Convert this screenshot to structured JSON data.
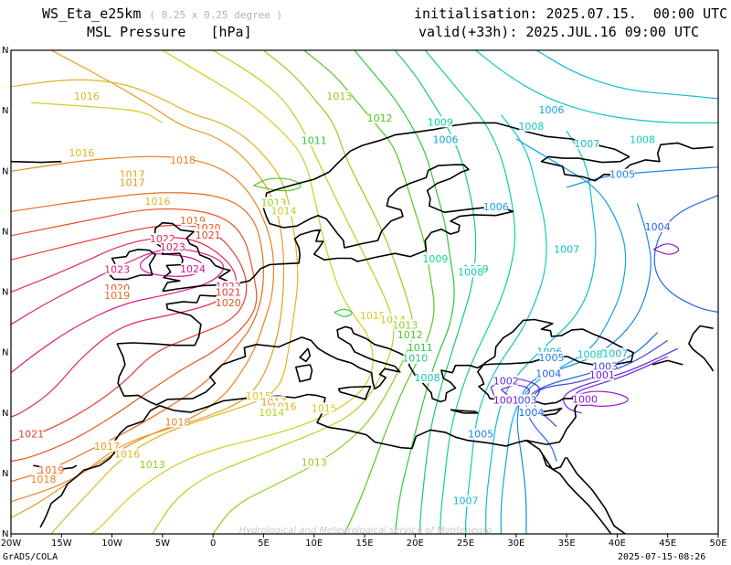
{
  "header": {
    "model": "WS_Eta_e25km",
    "resolution": "( 0.25 x 0.25 degree )",
    "field": "MSL Pressure",
    "unit": "[hPa]",
    "initialisation": "initialisation: 2025.07.15.  00:00 UTC",
    "valid": "valid(+33h): 2025.JUL.16 09:00 UTC"
  },
  "footer": {
    "left": "GrADS/COLA",
    "right": "2025-07-15-08:26"
  },
  "watermark": "Hydrological and Meteorological service of Montenegro",
  "axes": {
    "x_ticks": [
      "20W",
      "15W",
      "10W",
      "5W",
      "0",
      "5E",
      "10E",
      "15E",
      "20E",
      "25E",
      "30E",
      "35E",
      "40E",
      "45E",
      "50E"
    ],
    "y_ticks": [
      "N",
      "N",
      "N",
      "N",
      "N",
      "N",
      "N",
      "N",
      "N",
      "N"
    ]
  },
  "colors": {
    "c1000": "#9a16c8",
    "c1001": "#7a1ad6",
    "c1002": "#5a2ae0",
    "c1003": "#3c46e6",
    "c1004": "#2464e8",
    "c1005": "#1a86e6",
    "c1006": "#14a4de",
    "c1007": "#10bcd0",
    "c1008": "#10cab8",
    "c1009": "#12d09a",
    "c1010": "#1acc72",
    "c1011": "#30c83a",
    "c1012": "#52c81e",
    "c1013": "#8cd01c",
    "c1014": "#b8d21e",
    "c1015": "#d4cc22",
    "c1016": "#e0b420",
    "c1017": "#e69a20",
    "c1018": "#e8821e",
    "c1019": "#ea6a1e",
    "c1020": "#ec5224",
    "c1021": "#ea3c34",
    "c1022": "#e62a50",
    "c1023": "#de1a78",
    "c1024": "#d2129a"
  },
  "contour_labels": [
    {
      "text": "1016",
      "c": "c1016",
      "lon": -12.5,
      "lat": 74.2
    },
    {
      "text": "1016",
      "c": "c1016",
      "lon": -13.0,
      "lat": 67.2
    },
    {
      "text": "1018",
      "c": "c1018",
      "lon": -3.0,
      "lat": 66.3
    },
    {
      "text": "1017",
      "c": "c1017",
      "lon": -8.0,
      "lat": 64.5
    },
    {
      "text": "1017",
      "c": "c1017",
      "lon": -8.0,
      "lat": 63.5
    },
    {
      "text": "1016",
      "c": "c1016",
      "lon": -5.5,
      "lat": 61.2
    },
    {
      "text": "1019",
      "c": "c1019",
      "lon": -2.0,
      "lat": 58.8
    },
    {
      "text": "1020",
      "c": "c1020",
      "lon": -0.5,
      "lat": 57.9
    },
    {
      "text": "1021",
      "c": "c1021",
      "lon": -0.5,
      "lat": 57.0
    },
    {
      "text": "1022",
      "c": "c1022",
      "lon": -5.0,
      "lat": 56.5
    },
    {
      "text": "1023",
      "c": "c1023",
      "lon": -4.0,
      "lat": 55.5
    },
    {
      "text": "1023",
      "c": "c1023",
      "lon": -9.5,
      "lat": 52.7
    },
    {
      "text": "1024",
      "c": "c1024",
      "lon": -2.0,
      "lat": 52.8
    },
    {
      "text": "1022",
      "c": "c1022",
      "lon": 1.5,
      "lat": 50.6
    },
    {
      "text": "1021",
      "c": "c1021",
      "lon": 1.5,
      "lat": 49.9
    },
    {
      "text": "1020",
      "c": "c1020",
      "lon": -9.5,
      "lat": 50.4
    },
    {
      "text": "1019",
      "c": "c1019",
      "lon": -9.5,
      "lat": 49.5
    },
    {
      "text": "1020",
      "c": "c1020",
      "lon": 1.5,
      "lat": 48.6
    },
    {
      "text": "1013",
      "c": "c1013",
      "lon": 12.5,
      "lat": 74.2
    },
    {
      "text": "1012",
      "c": "c1012",
      "lon": 16.5,
      "lat": 71.5
    },
    {
      "text": "1011",
      "c": "c1011",
      "lon": 10.0,
      "lat": 68.7
    },
    {
      "text": "1013",
      "c": "c1013",
      "lon": 6.0,
      "lat": 61.0
    },
    {
      "text": "1014",
      "c": "c1014",
      "lon": 7.0,
      "lat": 60.0
    },
    {
      "text": "1009",
      "c": "c1009",
      "lon": 22.5,
      "lat": 71.0
    },
    {
      "text": "1006",
      "c": "c1006",
      "lon": 23.0,
      "lat": 68.8
    },
    {
      "text": "1008",
      "c": "c1008",
      "lon": 31.5,
      "lat": 70.5
    },
    {
      "text": "1008",
      "c": "c1008",
      "lon": 42.5,
      "lat": 68.8
    },
    {
      "text": "1007",
      "c": "c1007",
      "lon": 37.0,
      "lat": 68.3
    },
    {
      "text": "1006",
      "c": "c1006",
      "lon": 33.5,
      "lat": 72.5
    },
    {
      "text": "1005",
      "c": "c1005",
      "lon": 40.5,
      "lat": 64.5
    },
    {
      "text": "1006",
      "c": "c1006",
      "lon": 28.0,
      "lat": 60.5
    },
    {
      "text": "1004",
      "c": "c1004",
      "lon": 44.0,
      "lat": 58.0
    },
    {
      "text": "1007",
      "c": "c1007",
      "lon": 35.0,
      "lat": 55.2
    },
    {
      "text": "1009",
      "c": "c1009",
      "lon": 22.0,
      "lat": 54.0
    },
    {
      "text": "1009",
      "c": "c1009",
      "lon": 26.0,
      "lat": 52.8
    },
    {
      "text": "1008",
      "c": "c1008",
      "lon": 25.5,
      "lat": 52.4
    },
    {
      "text": "1015",
      "c": "c1015",
      "lon": 15.8,
      "lat": 47.0
    },
    {
      "text": "1014",
      "c": "c1014",
      "lon": 17.8,
      "lat": 46.5
    },
    {
      "text": "1013",
      "c": "c1013",
      "lon": 19.0,
      "lat": 45.8
    },
    {
      "text": "1012",
      "c": "c1012",
      "lon": 19.5,
      "lat": 44.6
    },
    {
      "text": "1011",
      "c": "c1011",
      "lon": 20.5,
      "lat": 43.0
    },
    {
      "text": "1010",
      "c": "c1010",
      "lon": 20.0,
      "lat": 41.7
    },
    {
      "text": "1008",
      "c": "c1008",
      "lon": 21.2,
      "lat": 39.3
    },
    {
      "text": "1006",
      "c": "c1006",
      "lon": 33.3,
      "lat": 42.5
    },
    {
      "text": "1005",
      "c": "c1005",
      "lon": 33.5,
      "lat": 41.8
    },
    {
      "text": "1008",
      "c": "c1008",
      "lon": 37.3,
      "lat": 42.2
    },
    {
      "text": "1007",
      "c": "c1007",
      "lon": 39.8,
      "lat": 42.3
    },
    {
      "text": "1003",
      "c": "c1003",
      "lon": 38.8,
      "lat": 40.7
    },
    {
      "text": "1004",
      "c": "c1004",
      "lon": 33.2,
      "lat": 39.8
    },
    {
      "text": "1001",
      "c": "c1001",
      "lon": 38.5,
      "lat": 39.6
    },
    {
      "text": "1002",
      "c": "c1002",
      "lon": 29.0,
      "lat": 38.9
    },
    {
      "text": "1000",
      "c": "c1000",
      "lon": 36.8,
      "lat": 36.6
    },
    {
      "text": "1003",
      "c": "c1003",
      "lon": 30.8,
      "lat": 36.5
    },
    {
      "text": "1001",
      "c": "c1001",
      "lon": 29.0,
      "lat": 36.5
    },
    {
      "text": "1004",
      "c": "c1004",
      "lon": 31.5,
      "lat": 35.0
    },
    {
      "text": "1005",
      "c": "c1005",
      "lon": 26.5,
      "lat": 32.3
    },
    {
      "text": "1007",
      "c": "c1007",
      "lon": 25.0,
      "lat": 24.0
    },
    {
      "text": "1013",
      "c": "c1013",
      "lon": 10.0,
      "lat": 28.8
    },
    {
      "text": "1018",
      "c": "c1018",
      "lon": -3.5,
      "lat": 33.8
    },
    {
      "text": "1017",
      "c": "c1017",
      "lon": -10.5,
      "lat": 30.8
    },
    {
      "text": "1016",
      "c": "c1016",
      "lon": -8.5,
      "lat": 29.8
    },
    {
      "text": "1013",
      "c": "c1013",
      "lon": -6.0,
      "lat": 28.5
    },
    {
      "text": "1015",
      "c": "c1015",
      "lon": 4.5,
      "lat": 37.0
    },
    {
      "text": "1017",
      "c": "c1017",
      "lon": 6.0,
      "lat": 36.3
    },
    {
      "text": "1016",
      "c": "c1016",
      "lon": 7.0,
      "lat": 35.7
    },
    {
      "text": "1014",
      "c": "c1014",
      "lon": 5.8,
      "lat": 35.0
    },
    {
      "text": "1015",
      "c": "c1015",
      "lon": 11.0,
      "lat": 35.5
    },
    {
      "text": "1021",
      "c": "c1021",
      "lon": -18.0,
      "lat": 32.3
    },
    {
      "text": "1019",
      "c": "c1019",
      "lon": -16.0,
      "lat": 27.8
    },
    {
      "text": "1018",
      "c": "c1018",
      "lon": -16.8,
      "lat": 26.7
    }
  ]
}
